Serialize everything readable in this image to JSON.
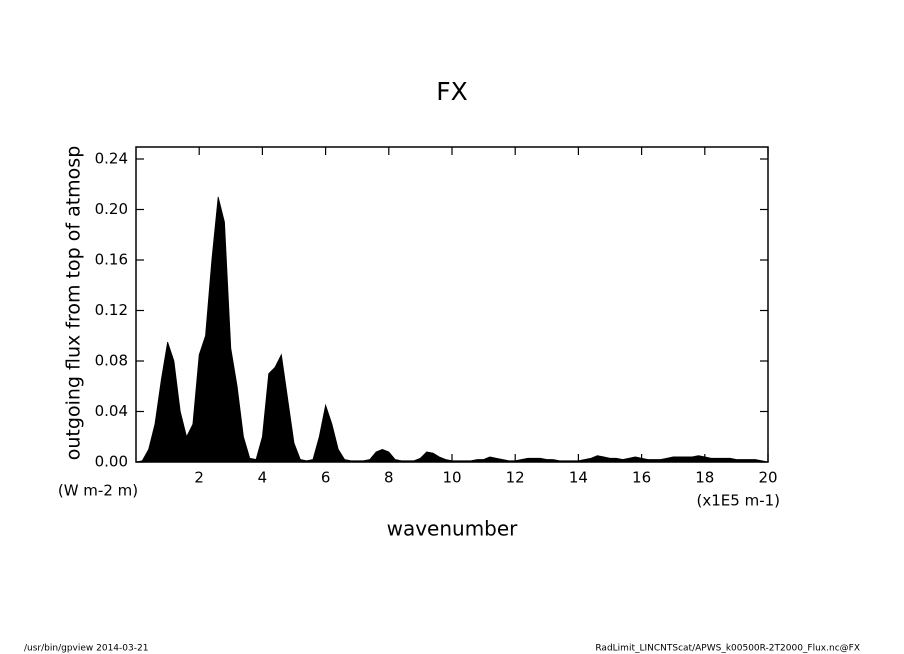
{
  "chart_data": {
    "type": "area",
    "title": "FX",
    "y_label": "outgoing flux from top of atmosp",
    "y_unit": "(W m-2 m)",
    "x_label": "wavenumber",
    "x_unit": "(x1E5 m-1)",
    "footer_left": "/usr/bin/gpview  2014-03-21",
    "footer_right": "RadLimit_LINCNTScat/APWS_k00500R-2T2000_Flux.nc@FX",
    "color": "#000000",
    "xlim": [
      0,
      20
    ],
    "xticks": [
      2,
      4,
      6,
      8,
      10,
      12,
      14,
      16,
      18,
      20
    ],
    "ylim": [
      0,
      0.24
    ],
    "yticks": [
      {
        "value": 0,
        "label": "0.00"
      },
      0.04,
      0.08,
      0.12,
      0.16,
      {
        "value": 0.2,
        "label": "0.20"
      },
      0.24
    ],
    "x": [
      0,
      0.2,
      0.4,
      0.6,
      0.8,
      1.0,
      1.2,
      1.4,
      1.6,
      1.8,
      2.0,
      2.2,
      2.4,
      2.6,
      2.8,
      3.0,
      3.2,
      3.4,
      3.6,
      3.8,
      4.0,
      4.2,
      4.4,
      4.6,
      4.8,
      5.0,
      5.2,
      5.4,
      5.6,
      5.8,
      6.0,
      6.2,
      6.4,
      6.6,
      6.8,
      7.0,
      7.2,
      7.4,
      7.6,
      7.8,
      8.0,
      8.2,
      8.4,
      8.6,
      8.8,
      9.0,
      9.2,
      9.4,
      9.6,
      9.8,
      10.0,
      10.2,
      10.4,
      10.6,
      10.8,
      11.0,
      11.2,
      11.4,
      11.6,
      11.8,
      12.0,
      12.2,
      12.4,
      12.6,
      12.8,
      13.0,
      13.2,
      13.4,
      13.6,
      13.8,
      14.0,
      14.2,
      14.4,
      14.6,
      14.8,
      15.0,
      15.2,
      15.4,
      15.6,
      15.8,
      16.0,
      16.2,
      16.4,
      16.6,
      16.8,
      17.0,
      17.2,
      17.4,
      17.6,
      17.8,
      18.0,
      18.2,
      18.4,
      18.6,
      18.8,
      19.0,
      19.2,
      19.4,
      19.6,
      19.8,
      20.0
    ],
    "values": [
      0,
      0.001,
      0.01,
      0.03,
      0.065,
      0.095,
      0.08,
      0.04,
      0.02,
      0.03,
      0.085,
      0.1,
      0.16,
      0.21,
      0.19,
      0.09,
      0.06,
      0.02,
      0.003,
      0.002,
      0.02,
      0.07,
      0.075,
      0.085,
      0.05,
      0.015,
      0.002,
      0.001,
      0.002,
      0.02,
      0.045,
      0.03,
      0.01,
      0.002,
      0.001,
      0.001,
      0.001,
      0.002,
      0.008,
      0.01,
      0.008,
      0.002,
      0.001,
      0.001,
      0.001,
      0.003,
      0.008,
      0.007,
      0.004,
      0.002,
      0.001,
      0.001,
      0.001,
      0.001,
      0.002,
      0.002,
      0.004,
      0.003,
      0.002,
      0.001,
      0.001,
      0.002,
      0.003,
      0.003,
      0.003,
      0.002,
      0.002,
      0.001,
      0.001,
      0.001,
      0.001,
      0.002,
      0.003,
      0.005,
      0.004,
      0.003,
      0.003,
      0.002,
      0.003,
      0.004,
      0.003,
      0.002,
      0.002,
      0.002,
      0.003,
      0.004,
      0.004,
      0.004,
      0.004,
      0.005,
      0.004,
      0.003,
      0.003,
      0.003,
      0.003,
      0.002,
      0.002,
      0.002,
      0.002,
      0.001,
      0
    ]
  }
}
